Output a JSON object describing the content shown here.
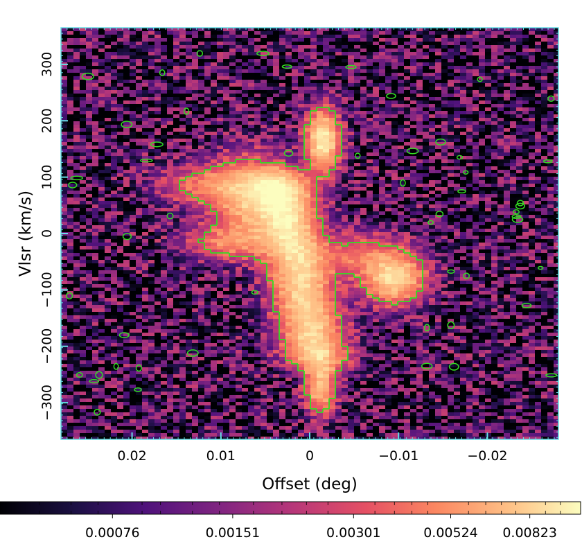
{
  "chart_data": {
    "type": "heatmap",
    "title": "",
    "xlabel": "Offset (deg)",
    "ylabel": "Vlsr (km/s)",
    "xlim": [
      0.028,
      -0.028
    ],
    "ylim": [
      -365,
      365
    ],
    "x_ticks": [
      0.02,
      0.01,
      0,
      -0.01,
      -0.02
    ],
    "x_tick_labels": [
      "0.02",
      "0.01",
      "0",
      "−0.01",
      "−0.02"
    ],
    "y_ticks": [
      300,
      200,
      100,
      0,
      -100,
      -200,
      -300
    ],
    "y_tick_labels": [
      "300",
      "200",
      "100",
      "0",
      "−100",
      "−200",
      "−300"
    ],
    "contour_color": "#33dd22",
    "frame_tick_color": "#66e0e8",
    "colormap": "magma",
    "colorbar": {
      "orientation": "horizontal",
      "scale": "log",
      "ticks": [
        0.00076,
        0.00151,
        0.00301,
        0.00524,
        0.00823
      ],
      "tick_labels": [
        "0.00076",
        "0.00151",
        "0.00301",
        "0.00524",
        "0.00823"
      ],
      "min": 0.0004,
      "max": 0.011
    },
    "emission_features": [
      {
        "name": "main-ridge",
        "kind": "ridge",
        "x1": 0.0035,
        "y1": 110,
        "x2": -0.001,
        "y2": -240,
        "width": 0.0022,
        "value": 0.0075
      },
      {
        "name": "upper-clump",
        "kind": "blob",
        "x": -0.0015,
        "y": 165,
        "sx": 0.0012,
        "sy": 35,
        "value": 0.009
      },
      {
        "name": "lower-tail",
        "kind": "blob",
        "x": -0.0012,
        "y": -270,
        "sx": 0.0011,
        "sy": 30,
        "value": 0.0065
      },
      {
        "name": "left-lobe",
        "kind": "blob",
        "x": 0.0065,
        "y": 65,
        "sx": 0.003,
        "sy": 45,
        "value": 0.006
      },
      {
        "name": "left-bridge",
        "kind": "blob",
        "x": 0.0115,
        "y": 85,
        "sx": 0.0035,
        "sy": 22,
        "value": 0.003
      },
      {
        "name": "left-arm",
        "kind": "blob",
        "x": 0.0085,
        "y": -15,
        "sx": 0.0035,
        "sy": 20,
        "value": 0.0035
      },
      {
        "name": "right-arm",
        "kind": "blob",
        "x": -0.0055,
        "y": -40,
        "sx": 0.0035,
        "sy": 25,
        "value": 0.003
      },
      {
        "name": "right-clump",
        "kind": "blob",
        "x": -0.0095,
        "y": -80,
        "sx": 0.0022,
        "sy": 28,
        "value": 0.0075
      }
    ]
  }
}
